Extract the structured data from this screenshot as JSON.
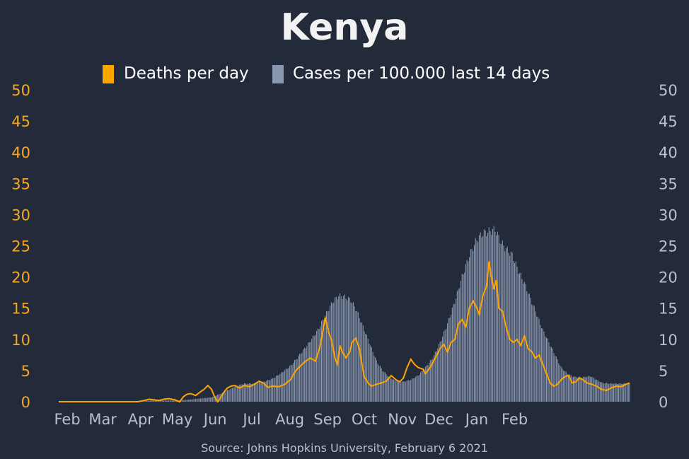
{
  "chart_data": {
    "type": "bar+line",
    "title": "Kenya",
    "source": "Source: Johns Hopkins University, February 6 2021",
    "colors": {
      "background": "#232b3b",
      "deaths": "#ffa500",
      "cases": "#8a97b0",
      "left_ticks": "#f5a623",
      "right_ticks": "#b8c0cc",
      "text": "#ffffff"
    },
    "legend": [
      {
        "label": "Deaths per day",
        "color": "#ffa500",
        "shape": "bar"
      },
      {
        "label": "Cases per 100.000 last 14 days",
        "color": "#8a97b0",
        "shape": "bar"
      }
    ],
    "legend_position": "top",
    "x_ticks": [
      "Feb",
      "Mar",
      "Apr",
      "May",
      "Jun",
      "Jul",
      "Aug",
      "Sep",
      "Oct",
      "Nov",
      "Dec",
      "Jan",
      "Feb"
    ],
    "y_left": {
      "ticks": [
        0,
        5,
        10,
        15,
        20,
        25,
        30,
        35,
        40,
        45,
        50
      ],
      "ylim": [
        0,
        50
      ]
    },
    "y_right": {
      "ticks": [
        0,
        5,
        10,
        15,
        20,
        25,
        30,
        35,
        40,
        45,
        50
      ],
      "ylim": [
        0,
        50
      ]
    },
    "x_range_days": [
      0,
      371
    ],
    "series": [
      {
        "name": "Cases per 100.000 last 14 days",
        "type": "bar",
        "points": [
          [
            0,
            0
          ],
          [
            60,
            0
          ],
          [
            75,
            0.2
          ],
          [
            95,
            0.2
          ],
          [
            105,
            0.3
          ],
          [
            115,
            0.5
          ],
          [
            125,
            0.7
          ],
          [
            135,
            1.5
          ],
          [
            145,
            2.5
          ],
          [
            152,
            2.9
          ],
          [
            160,
            2.9
          ],
          [
            168,
            3.2
          ],
          [
            175,
            3.7
          ],
          [
            182,
            4.6
          ],
          [
            190,
            5.8
          ],
          [
            197,
            7.5
          ],
          [
            205,
            9.5
          ],
          [
            212,
            11.5
          ],
          [
            218,
            13.8
          ],
          [
            224,
            16.0
          ],
          [
            229,
            17.0
          ],
          [
            234,
            16.8
          ],
          [
            239,
            16.3
          ],
          [
            244,
            14.5
          ],
          [
            249,
            12.0
          ],
          [
            255,
            9.0
          ],
          [
            260,
            6.5
          ],
          [
            265,
            5.0
          ],
          [
            270,
            4.0
          ],
          [
            275,
            3.4
          ],
          [
            282,
            3.2
          ],
          [
            288,
            3.5
          ],
          [
            294,
            4.2
          ],
          [
            300,
            5.5
          ],
          [
            306,
            7.0
          ],
          [
            312,
            9.5
          ],
          [
            318,
            12.5
          ],
          [
            324,
            16.0
          ],
          [
            330,
            20.0
          ],
          [
            336,
            23.5
          ],
          [
            342,
            26.0
          ],
          [
            347,
            27.0
          ],
          [
            352,
            27.3
          ],
          [
            357,
            27.6
          ],
          [
            362,
            25.5
          ],
          [
            366,
            24.5
          ],
          [
            371,
            23.5
          ],
          [
            376,
            21.0
          ],
          [
            381,
            19.0
          ],
          [
            386,
            16.5
          ],
          [
            391,
            14.0
          ],
          [
            396,
            11.5
          ],
          [
            401,
            9.5
          ],
          [
            406,
            7.5
          ],
          [
            411,
            5.5
          ],
          [
            416,
            4.5
          ],
          [
            421,
            4.0
          ],
          [
            428,
            3.9
          ],
          [
            435,
            4.1
          ],
          [
            440,
            3.5
          ],
          [
            445,
            3.0
          ],
          [
            452,
            2.9
          ],
          [
            460,
            2.9
          ],
          [
            467,
            2.9
          ]
        ]
      },
      {
        "name": "Deaths per day",
        "type": "line",
        "points": [
          [
            0,
            0
          ],
          [
            65,
            0
          ],
          [
            70,
            0.2
          ],
          [
            74,
            0.4
          ],
          [
            78,
            0.3
          ],
          [
            82,
            0.2
          ],
          [
            86,
            0.4
          ],
          [
            90,
            0.5
          ],
          [
            95,
            0.3
          ],
          [
            99,
            0
          ],
          [
            102,
            0.8
          ],
          [
            105,
            1.2
          ],
          [
            108,
            1.3
          ],
          [
            112,
            1.0
          ],
          [
            116,
            1.6
          ],
          [
            119,
            2.0
          ],
          [
            122,
            2.6
          ],
          [
            125,
            2.0
          ],
          [
            127,
            1.0
          ],
          [
            130,
            0
          ],
          [
            132,
            0.5
          ],
          [
            135,
            1.5
          ],
          [
            138,
            2.2
          ],
          [
            141,
            2.5
          ],
          [
            144,
            2.6
          ],
          [
            148,
            2.2
          ],
          [
            152,
            2.6
          ],
          [
            156,
            2.4
          ],
          [
            160,
            2.8
          ],
          [
            164,
            3.3
          ],
          [
            168,
            2.9
          ],
          [
            171,
            2.3
          ],
          [
            175,
            2.5
          ],
          [
            180,
            2.4
          ],
          [
            185,
            2.8
          ],
          [
            190,
            3.6
          ],
          [
            194,
            5.0
          ],
          [
            198,
            5.8
          ],
          [
            202,
            6.5
          ],
          [
            206,
            7.0
          ],
          [
            210,
            6.5
          ],
          [
            214,
            9.0
          ],
          [
            218,
            13.5
          ],
          [
            221,
            11.0
          ],
          [
            223,
            10.0
          ],
          [
            226,
            7.0
          ],
          [
            228,
            6.0
          ],
          [
            230,
            9.0
          ],
          [
            232,
            8.0
          ],
          [
            235,
            7.0
          ],
          [
            238,
            8.0
          ],
          [
            240,
            9.5
          ],
          [
            243,
            10.2
          ],
          [
            246,
            8.5
          ],
          [
            248,
            6.0
          ],
          [
            250,
            4.0
          ],
          [
            253,
            3.0
          ],
          [
            256,
            2.5
          ],
          [
            260,
            2.8
          ],
          [
            264,
            3.0
          ],
          [
            268,
            3.3
          ],
          [
            272,
            4.2
          ],
          [
            276,
            3.5
          ],
          [
            279,
            3.2
          ],
          [
            282,
            3.8
          ],
          [
            285,
            5.5
          ],
          [
            288,
            6.8
          ],
          [
            291,
            6.0
          ],
          [
            294,
            5.5
          ],
          [
            298,
            5.2
          ],
          [
            300,
            4.5
          ],
          [
            304,
            5.5
          ],
          [
            308,
            7.0
          ],
          [
            312,
            8.5
          ],
          [
            315,
            9.2
          ],
          [
            318,
            8.0
          ],
          [
            321,
            9.5
          ],
          [
            324,
            10.0
          ],
          [
            327,
            12.5
          ],
          [
            330,
            13.2
          ],
          [
            333,
            12.0
          ],
          [
            336,
            15.0
          ],
          [
            339,
            16.2
          ],
          [
            342,
            15.0
          ],
          [
            344,
            14.0
          ],
          [
            347,
            17.0
          ],
          [
            350,
            18.5
          ],
          [
            352,
            22.5
          ],
          [
            354,
            20.0
          ],
          [
            356,
            18.0
          ],
          [
            358,
            19.5
          ],
          [
            360,
            15.0
          ],
          [
            363,
            14.5
          ],
          [
            366,
            12.0
          ],
          [
            369,
            10.0
          ],
          [
            372,
            9.5
          ],
          [
            375,
            10.0
          ],
          [
            378,
            9.0
          ],
          [
            381,
            10.5
          ],
          [
            384,
            8.5
          ],
          [
            387,
            8.0
          ],
          [
            390,
            7.0
          ],
          [
            393,
            7.5
          ],
          [
            396,
            6.0
          ],
          [
            399,
            4.5
          ],
          [
            402,
            3.0
          ],
          [
            405,
            2.5
          ],
          [
            408,
            2.8
          ],
          [
            411,
            3.5
          ],
          [
            414,
            4.0
          ],
          [
            417,
            4.2
          ],
          [
            420,
            3.0
          ],
          [
            423,
            3.2
          ],
          [
            426,
            3.8
          ],
          [
            429,
            3.5
          ],
          [
            432,
            3.0
          ],
          [
            436,
            2.8
          ],
          [
            440,
            2.5
          ],
          [
            444,
            2.0
          ],
          [
            448,
            1.8
          ],
          [
            452,
            2.2
          ],
          [
            456,
            2.5
          ],
          [
            460,
            2.4
          ],
          [
            464,
            2.8
          ],
          [
            467,
            3.0
          ]
        ]
      }
    ],
    "x_tick_days": [
      7,
      36,
      67,
      97,
      128,
      158,
      189,
      220,
      250,
      281,
      311,
      342,
      373
    ]
  }
}
